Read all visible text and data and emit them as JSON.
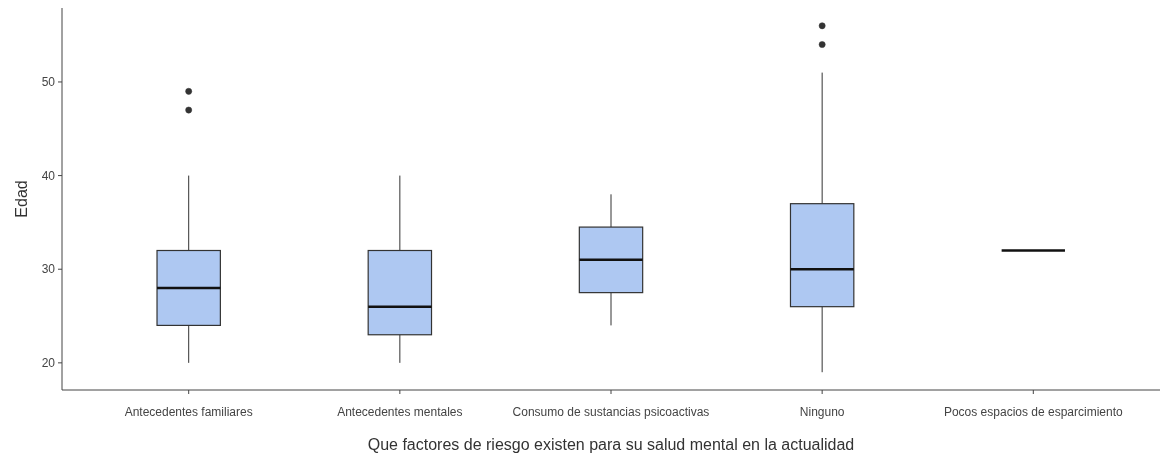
{
  "chart_data": {
    "type": "box",
    "xlabel": "Que factores de riesgo existen para su salud mental en la actualidad",
    "ylabel": "Edad",
    "categories": [
      "Antecedentes familiares",
      "Antecedentes mentales",
      "Consumo de sustancias psicoactivas",
      "Ninguno",
      "Pocos espacios de esparcimiento"
    ],
    "colors": [
      "#aec8f2",
      "#aec8f2",
      "#aec8f2",
      "#aec8f2",
      "#111111"
    ],
    "boxes": [
      {
        "low": 20,
        "q1": 24,
        "median": 28,
        "q3": 32,
        "high": 40,
        "outliers": [
          47,
          49
        ]
      },
      {
        "low": 20,
        "q1": 23,
        "median": 26,
        "q3": 32,
        "high": 40
      },
      {
        "low": 24,
        "q1": 27.5,
        "median": 31,
        "q3": 34.5,
        "high": 38
      },
      {
        "low": 19,
        "q1": 26,
        "median": 30,
        "q3": 37,
        "high": 51,
        "outliers": [
          54,
          56
        ]
      },
      {
        "low": 32,
        "q1": 32,
        "median": 32,
        "q3": 32,
        "high": 32
      }
    ],
    "ylim": [
      17.1,
      57.9
    ],
    "yticks": [
      20,
      30,
      40,
      50
    ],
    "grid": false
  }
}
